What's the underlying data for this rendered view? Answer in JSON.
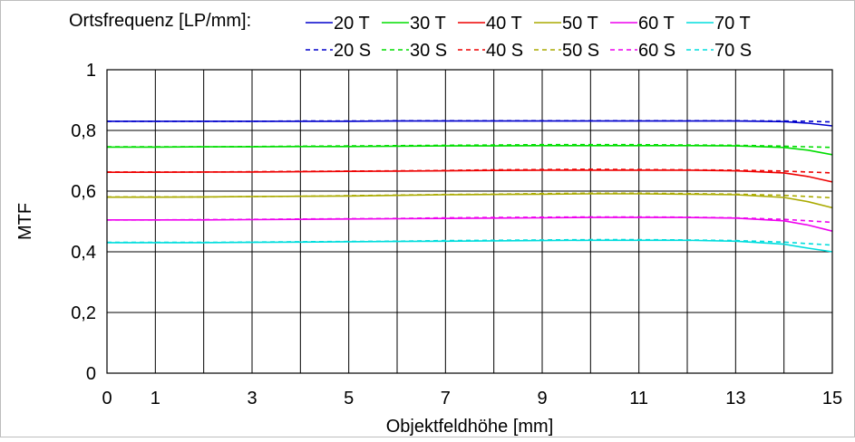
{
  "chart_data": {
    "type": "line",
    "title": "",
    "xlabel": "Objektfeldhöhe [mm]",
    "ylabel": "MTF",
    "xlim": [
      0,
      15
    ],
    "ylim": [
      0,
      1
    ],
    "x_ticks": [
      0,
      1,
      3,
      5,
      7,
      9,
      11,
      13,
      15
    ],
    "x_gridlines": [
      0,
      1,
      2,
      3,
      4,
      5,
      6,
      7,
      8,
      9,
      10,
      11,
      12,
      13,
      14,
      15
    ],
    "y_ticks": [
      0,
      0.2,
      0.4,
      0.6,
      0.8,
      1
    ],
    "y_tick_labels": [
      "0",
      "0,2",
      "0,4",
      "0,6",
      "0,8",
      "1"
    ],
    "grid": true,
    "legend_title": "Ortsfrequenz [LP/mm]:",
    "legend_position": "top",
    "x": [
      0,
      1,
      2,
      3,
      4,
      5,
      6,
      7,
      8,
      9,
      10,
      11,
      12,
      13,
      14,
      14.5,
      15
    ],
    "series": [
      {
        "name": "20 T",
        "color": "#0000cc",
        "dash": "solid",
        "values": [
          0.83,
          0.83,
          0.83,
          0.83,
          0.83,
          0.83,
          0.831,
          0.831,
          0.831,
          0.831,
          0.831,
          0.831,
          0.831,
          0.831,
          0.829,
          0.824,
          0.815
        ]
      },
      {
        "name": "30 T",
        "color": "#00dd00",
        "dash": "solid",
        "values": [
          0.745,
          0.745,
          0.746,
          0.746,
          0.747,
          0.747,
          0.748,
          0.749,
          0.749,
          0.75,
          0.75,
          0.75,
          0.75,
          0.749,
          0.744,
          0.735,
          0.72
        ]
      },
      {
        "name": "40 T",
        "color": "#ee0000",
        "dash": "solid",
        "values": [
          0.662,
          0.662,
          0.663,
          0.663,
          0.664,
          0.665,
          0.666,
          0.667,
          0.668,
          0.669,
          0.669,
          0.669,
          0.669,
          0.667,
          0.66,
          0.648,
          0.63
        ]
      },
      {
        "name": "50 T",
        "color": "#aaaa00",
        "dash": "solid",
        "values": [
          0.58,
          0.58,
          0.581,
          0.582,
          0.583,
          0.584,
          0.586,
          0.588,
          0.589,
          0.59,
          0.591,
          0.591,
          0.59,
          0.588,
          0.579,
          0.565,
          0.545
        ]
      },
      {
        "name": "60 T",
        "color": "#ee00ee",
        "dash": "solid",
        "values": [
          0.505,
          0.505,
          0.505,
          0.506,
          0.507,
          0.508,
          0.509,
          0.51,
          0.511,
          0.512,
          0.513,
          0.513,
          0.513,
          0.511,
          0.502,
          0.488,
          0.468
        ]
      },
      {
        "name": "70 T",
        "color": "#00dddd",
        "dash": "solid",
        "values": [
          0.43,
          0.43,
          0.43,
          0.431,
          0.432,
          0.433,
          0.434,
          0.435,
          0.436,
          0.437,
          0.438,
          0.438,
          0.438,
          0.435,
          0.425,
          0.412,
          0.4
        ]
      },
      {
        "name": "20 S",
        "color": "#0000cc",
        "dash": "dashed",
        "values": [
          0.83,
          0.83,
          0.83,
          0.83,
          0.831,
          0.831,
          0.832,
          0.832,
          0.832,
          0.832,
          0.832,
          0.832,
          0.832,
          0.832,
          0.831,
          0.83,
          0.828
        ]
      },
      {
        "name": "30 S",
        "color": "#00dd00",
        "dash": "dashed",
        "values": [
          0.746,
          0.746,
          0.746,
          0.747,
          0.748,
          0.749,
          0.75,
          0.751,
          0.752,
          0.753,
          0.753,
          0.753,
          0.752,
          0.751,
          0.748,
          0.746,
          0.744
        ]
      },
      {
        "name": "40 S",
        "color": "#ee0000",
        "dash": "dashed",
        "values": [
          0.663,
          0.663,
          0.663,
          0.664,
          0.665,
          0.666,
          0.667,
          0.668,
          0.67,
          0.671,
          0.672,
          0.671,
          0.67,
          0.669,
          0.666,
          0.663,
          0.66
        ]
      },
      {
        "name": "50 S",
        "color": "#aaaa00",
        "dash": "dashed",
        "values": [
          0.581,
          0.581,
          0.581,
          0.582,
          0.583,
          0.585,
          0.587,
          0.589,
          0.59,
          0.592,
          0.593,
          0.593,
          0.592,
          0.59,
          0.586,
          0.582,
          0.578
        ]
      },
      {
        "name": "60 S",
        "color": "#ee00ee",
        "dash": "dashed",
        "values": [
          0.505,
          0.505,
          0.506,
          0.507,
          0.508,
          0.509,
          0.51,
          0.512,
          0.513,
          0.514,
          0.515,
          0.515,
          0.514,
          0.512,
          0.507,
          0.502,
          0.497
        ]
      },
      {
        "name": "70 S",
        "color": "#00dddd",
        "dash": "dashed",
        "values": [
          0.431,
          0.431,
          0.431,
          0.432,
          0.433,
          0.434,
          0.435,
          0.437,
          0.438,
          0.439,
          0.44,
          0.44,
          0.439,
          0.437,
          0.432,
          0.427,
          0.422
        ]
      }
    ]
  }
}
